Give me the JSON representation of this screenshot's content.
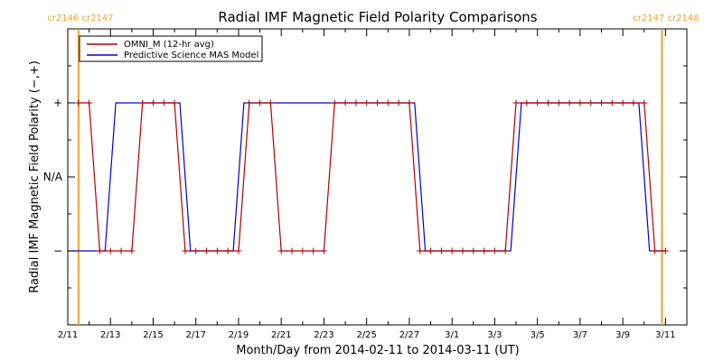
{
  "chart_data": {
    "type": "line",
    "title": "Radial IMF Magnetic Field Polarity Comparisons",
    "xlabel": "Month/Day from 2014-02-11 to 2014-03-11 (UT)",
    "ylabel": "Radial IMF Magnetic Field Polarity (−,+)",
    "x_ticks": [
      "2/11",
      "2/13",
      "2/15",
      "2/17",
      "2/19",
      "2/21",
      "2/23",
      "2/25",
      "2/27",
      "3/1",
      "3/3",
      "3/5",
      "3/7",
      "3/9",
      "3/11"
    ],
    "y_ticks": [
      "+",
      "N/A",
      "−"
    ],
    "xlim": [
      "2014-02-11T00:00",
      "2014-03-12T00:00"
    ],
    "ylim": [
      -2,
      2
    ],
    "carrington_labels": [
      {
        "text": "cr2146 cr2147",
        "x": "2014-02-11T12:00"
      },
      {
        "text": "cr2147 cr2148",
        "x": "2014-03-10T20:00"
      }
    ],
    "legend_position": "top-left",
    "colors": {
      "omni": "#b00000",
      "mas": "#0000cc",
      "carrington": "#f0a030"
    },
    "series": [
      {
        "name": "OMNI_M (12-hr avg)",
        "marker": "plus",
        "points": [
          [
            "2014-02-11T12:00",
            1
          ],
          [
            "2014-02-12T00:00",
            1
          ],
          [
            "2014-02-12T12:00",
            -1
          ],
          [
            "2014-02-13T00:00",
            -1
          ],
          [
            "2014-02-13T12:00",
            -1
          ],
          [
            "2014-02-14T00:00",
            -1
          ],
          [
            "2014-02-14T12:00",
            1
          ],
          [
            "2014-02-15T00:00",
            1
          ],
          [
            "2014-02-15T12:00",
            1
          ],
          [
            "2014-02-16T00:00",
            1
          ],
          [
            "2014-02-16T12:00",
            -1
          ],
          [
            "2014-02-17T00:00",
            -1
          ],
          [
            "2014-02-17T12:00",
            -1
          ],
          [
            "2014-02-18T00:00",
            -1
          ],
          [
            "2014-02-18T12:00",
            -1
          ],
          [
            "2014-02-19T00:00",
            -1
          ],
          [
            "2014-02-19T12:00",
            1
          ],
          [
            "2014-02-20T00:00",
            1
          ],
          [
            "2014-02-20T12:00",
            1
          ],
          [
            "2014-02-21T00:00",
            -1
          ],
          [
            "2014-02-21T12:00",
            -1
          ],
          [
            "2014-02-22T00:00",
            -1
          ],
          [
            "2014-02-22T12:00",
            -1
          ],
          [
            "2014-02-23T00:00",
            -1
          ],
          [
            "2014-02-23T12:00",
            1
          ],
          [
            "2014-02-24T00:00",
            1
          ],
          [
            "2014-02-24T12:00",
            1
          ],
          [
            "2014-02-25T00:00",
            1
          ],
          [
            "2014-02-25T12:00",
            1
          ],
          [
            "2014-02-26T00:00",
            1
          ],
          [
            "2014-02-26T12:00",
            1
          ],
          [
            "2014-02-27T00:00",
            1
          ],
          [
            "2014-02-27T12:00",
            -1
          ],
          [
            "2014-02-28T00:00",
            -1
          ],
          [
            "2014-02-28T12:00",
            -1
          ],
          [
            "2014-03-01T00:00",
            -1
          ],
          [
            "2014-03-01T12:00",
            -1
          ],
          [
            "2014-03-02T00:00",
            -1
          ],
          [
            "2014-03-02T12:00",
            -1
          ],
          [
            "2014-03-03T00:00",
            -1
          ],
          [
            "2014-03-03T12:00",
            -1
          ],
          [
            "2014-03-04T00:00",
            1
          ],
          [
            "2014-03-04T12:00",
            1
          ],
          [
            "2014-03-05T00:00",
            1
          ],
          [
            "2014-03-05T12:00",
            1
          ],
          [
            "2014-03-06T00:00",
            1
          ],
          [
            "2014-03-06T12:00",
            1
          ],
          [
            "2014-03-07T00:00",
            1
          ],
          [
            "2014-03-07T12:00",
            1
          ],
          [
            "2014-03-08T00:00",
            1
          ],
          [
            "2014-03-08T12:00",
            1
          ],
          [
            "2014-03-09T00:00",
            1
          ],
          [
            "2014-03-09T12:00",
            1
          ],
          [
            "2014-03-10T00:00",
            1
          ],
          [
            "2014-03-10T12:00",
            -1
          ],
          [
            "2014-03-11T00:00",
            -1
          ]
        ]
      },
      {
        "name": "Predictive Science MAS Model",
        "marker": "none",
        "points": [
          [
            "2014-02-11T00:00",
            -1
          ],
          [
            "2014-02-12T18:00",
            -1
          ],
          [
            "2014-02-13T06:00",
            1
          ],
          [
            "2014-02-16T06:00",
            1
          ],
          [
            "2014-02-16T18:00",
            -1
          ],
          [
            "2014-02-18T18:00",
            -1
          ],
          [
            "2014-02-19T06:00",
            1
          ],
          [
            "2014-02-27T06:00",
            1
          ],
          [
            "2014-02-27T18:00",
            -1
          ],
          [
            "2014-03-03T18:00",
            -1
          ],
          [
            "2014-03-04T06:00",
            1
          ],
          [
            "2014-03-09T18:00",
            1
          ],
          [
            "2014-03-10T06:00",
            -1
          ],
          [
            "2014-03-11T00:00",
            -1
          ]
        ]
      }
    ]
  }
}
